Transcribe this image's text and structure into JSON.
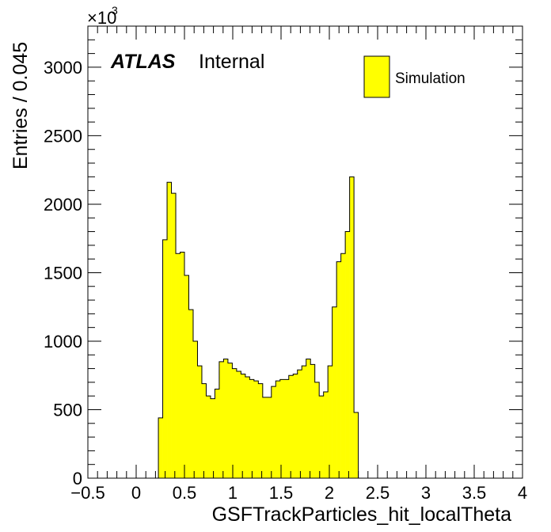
{
  "chart_data": {
    "type": "histogram",
    "xlabel": "GSFTrackParticles_hit_localTheta",
    "ylabel": "Entries / 0.045",
    "y_multiplier_base": "×10",
    "y_multiplier_exp": "3",
    "xlim": [
      -0.5,
      4.0
    ],
    "ylim": [
      0,
      3300
    ],
    "x_ticks": [
      -0.5,
      0,
      0.5,
      1,
      1.5,
      2,
      2.5,
      3,
      3.5,
      4
    ],
    "x_tick_labels": [
      "−0.5",
      "0",
      "0.5",
      "1",
      "1.5",
      "2",
      "2.5",
      "3",
      "3.5",
      "4"
    ],
    "y_ticks": [
      0,
      500,
      1000,
      1500,
      2000,
      2500,
      3000
    ],
    "y_tick_labels": [
      "0",
      "500",
      "1000",
      "1500",
      "2000",
      "2500",
      "3000"
    ],
    "bin_width": 0.045,
    "bin_start": 0.23,
    "bin_values": [
      440,
      1740,
      2160,
      2080,
      1640,
      1650,
      1480,
      1230,
      1000,
      820,
      690,
      600,
      580,
      650,
      850,
      870,
      840,
      800,
      780,
      760,
      740,
      720,
      710,
      690,
      590,
      590,
      670,
      710,
      720,
      720,
      750,
      760,
      790,
      820,
      870,
      830,
      700,
      600,
      630,
      820,
      1250,
      1580,
      1640,
      1800,
      2200,
      480
    ],
    "fill_color": "#ffff00",
    "line_color": "#000000",
    "grid": false,
    "legend_position": "top-right",
    "series": [
      {
        "name": "Simulation"
      }
    ]
  },
  "labels": {
    "atlas": "ATLAS",
    "internal": "Internal"
  }
}
